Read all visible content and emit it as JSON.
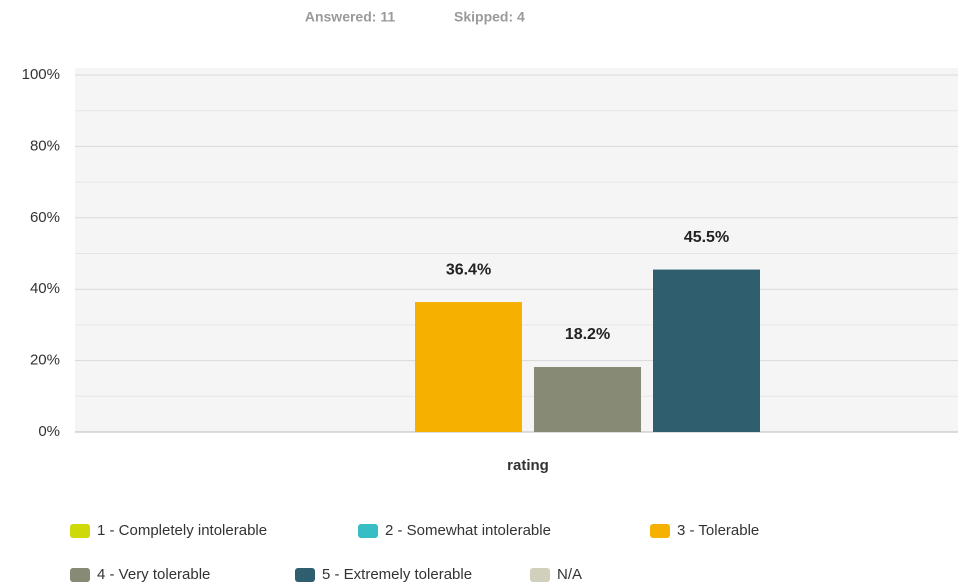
{
  "chart_data": {
    "type": "bar",
    "answered": "Answered: 11",
    "skipped": "Skipped: 4",
    "x_label": "rating",
    "categories": [
      "rating"
    ],
    "series": [
      {
        "name": "1 - Completely intolerable",
        "color": "#cfd90a",
        "values": [
          0
        ],
        "value_labels": [
          null
        ]
      },
      {
        "name": "2 - Somewhat intolerable",
        "color": "#37bec4",
        "values": [
          0
        ],
        "value_labels": [
          null
        ]
      },
      {
        "name": "3 - Tolerable",
        "color": "#f6b000",
        "values": [
          36.4
        ],
        "value_labels": [
          "36.4%"
        ]
      },
      {
        "name": "4 - Very tolerable",
        "color": "#878a75",
        "values": [
          18.2
        ],
        "value_labels": [
          "18.2%"
        ]
      },
      {
        "name": "5 - Extremely tolerable",
        "color": "#2f5e6e",
        "values": [
          45.5
        ],
        "value_labels": [
          "45.5%"
        ]
      },
      {
        "name": "N/A",
        "color": "#d1d0bd",
        "values": [
          0
        ],
        "value_labels": [
          null
        ]
      }
    ],
    "ylim": [
      0,
      100
    ],
    "yticks": [
      {
        "value": 0,
        "label": "0%"
      },
      {
        "value": 20,
        "label": "20%"
      },
      {
        "value": 40,
        "label": "40%"
      },
      {
        "value": 60,
        "label": "60%"
      },
      {
        "value": 80,
        "label": "80%"
      },
      {
        "value": 100,
        "label": "100%"
      }
    ],
    "grid": true
  }
}
